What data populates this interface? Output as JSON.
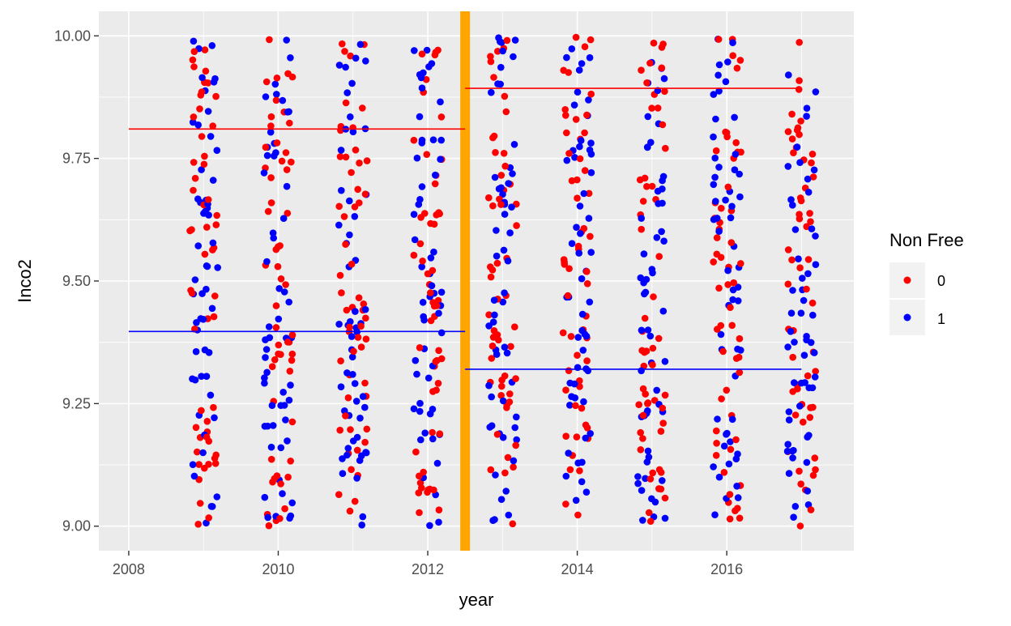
{
  "chart_data": {
    "type": "scatter",
    "title": "",
    "xlabel": "year",
    "ylabel": "Inco2",
    "xlim": [
      2007.6,
      2017.7
    ],
    "ylim": [
      8.95,
      10.05
    ],
    "x_ticks": [
      2008,
      2010,
      2012,
      2014,
      2016
    ],
    "x_tick_labels": [
      "2008",
      "2010",
      "2012",
      "2014",
      "2016"
    ],
    "y_ticks": [
      9.0,
      9.25,
      9.5,
      9.75,
      10.0
    ],
    "y_tick_labels": [
      "9.00",
      "9.25",
      "9.50",
      "9.75",
      "10.00"
    ],
    "grid": true,
    "background": "#ebebeb",
    "jitter_years": [
      2009,
      2010,
      2011,
      2012,
      2013,
      2014,
      2015,
      2016,
      2017
    ],
    "jitter_width": 0.38,
    "y_range": [
      9.0,
      10.0
    ],
    "points_per_group": 55,
    "series": [
      {
        "name": "0",
        "color": "#ff0000"
      },
      {
        "name": "1",
        "color": "#0000ff"
      }
    ],
    "reference_lines": [
      {
        "series": "0",
        "color": "#ff0000",
        "x_start": 2008,
        "x_end": 2012.5,
        "y": 9.81
      },
      {
        "series": "1",
        "color": "#0000ff",
        "x_start": 2008,
        "x_end": 2012.5,
        "y": 9.397
      },
      {
        "series": "0",
        "color": "#ff0000",
        "x_start": 2012.5,
        "x_end": 2017,
        "y": 9.893
      },
      {
        "series": "1",
        "color": "#0000ff",
        "x_start": 2012.5,
        "x_end": 2017,
        "y": 9.32
      }
    ],
    "vline": {
      "x": 2012.5,
      "color": "#ffa500"
    },
    "legend": {
      "title": "Non Free",
      "placement": "right",
      "entries": [
        {
          "label": "0",
          "color": "#ff0000"
        },
        {
          "label": "1",
          "color": "#0000ff"
        }
      ]
    }
  }
}
